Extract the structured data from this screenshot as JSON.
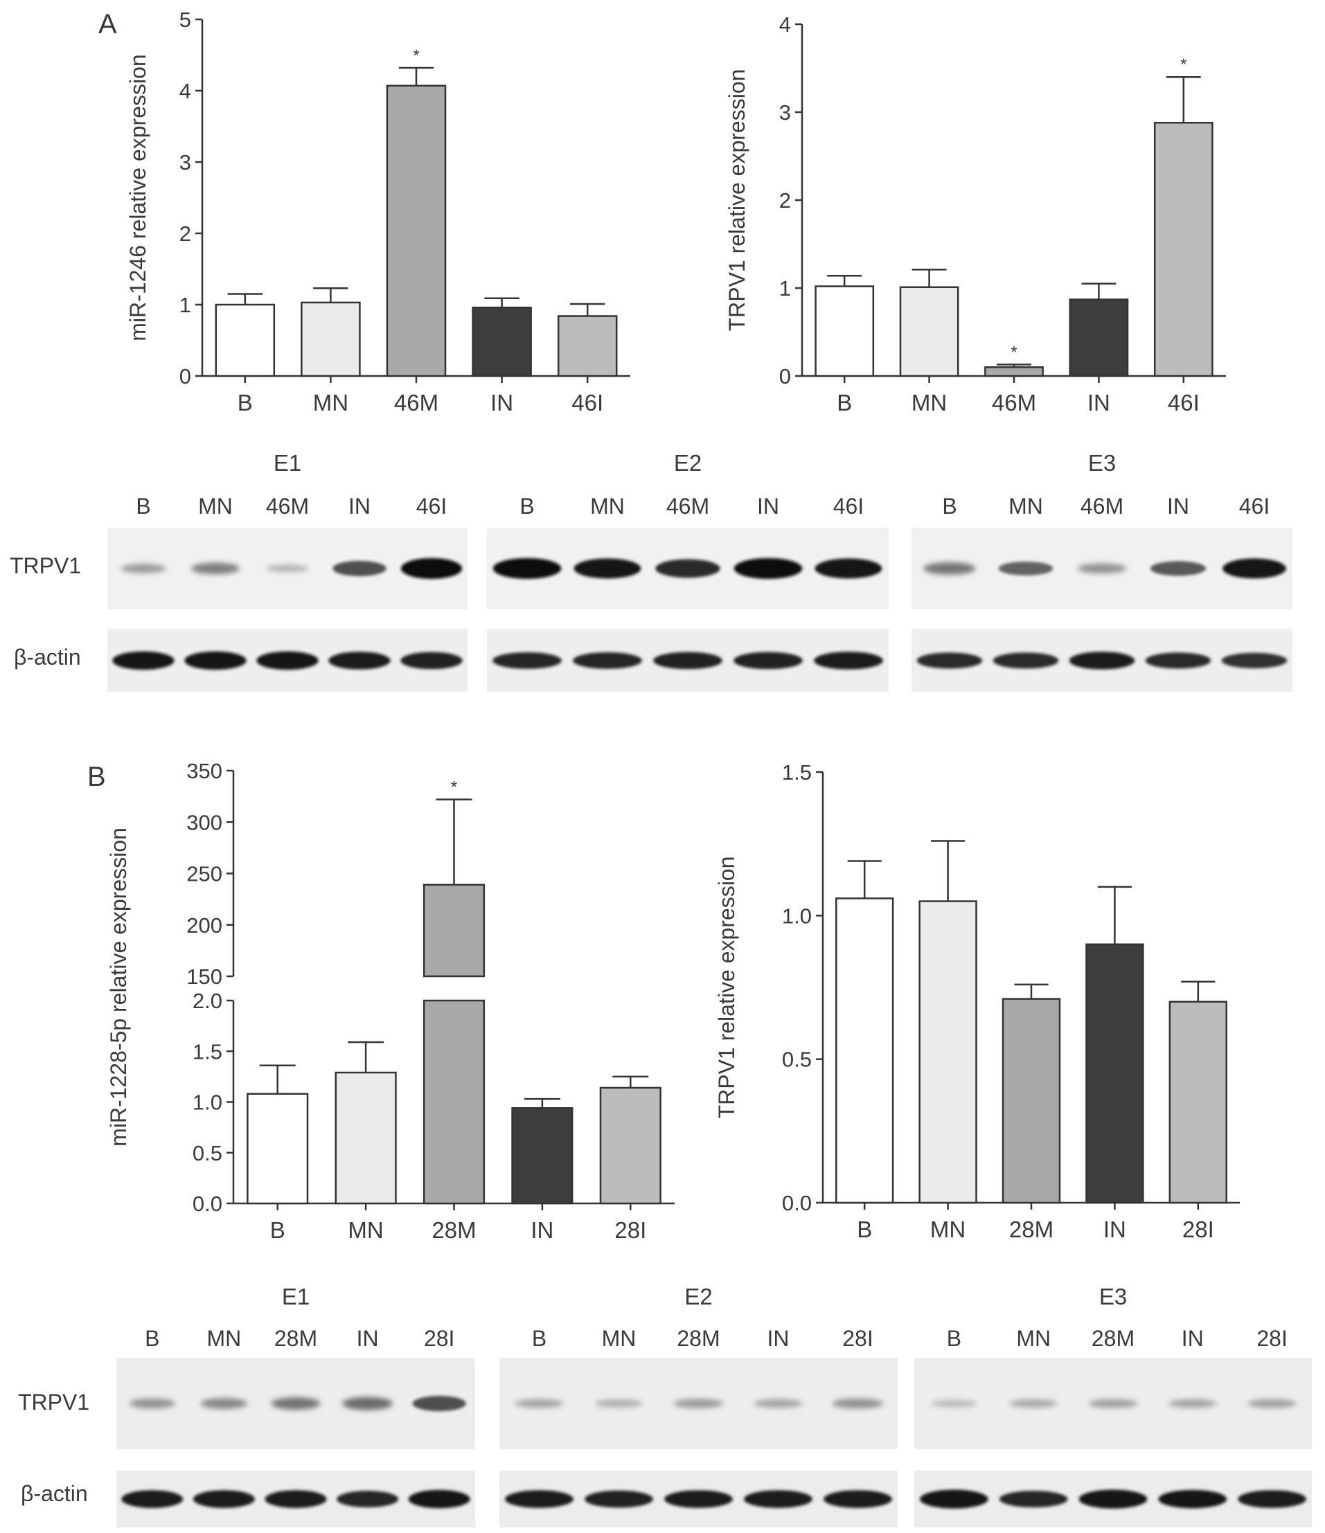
{
  "panels": {
    "A": {
      "letter": "A",
      "charts": [
        {
          "type": "bar",
          "ylabel": "miR-1246 relative expression",
          "ylim": [
            0,
            5
          ],
          "yticks": [
            "0",
            "1",
            "2",
            "3",
            "4",
            "5"
          ],
          "categories": [
            "B",
            "MN",
            "46M",
            "IN",
            "46I"
          ],
          "values": [
            1.0,
            1.03,
            4.07,
            0.96,
            0.84
          ],
          "errors": [
            0.15,
            0.2,
            0.25,
            0.13,
            0.17
          ],
          "significance": [
            "",
            "",
            "*",
            "",
            ""
          ],
          "bar_colors": [
            "#ffffff",
            "#ebebeb",
            "#a9a9a9",
            "#3d3d3d",
            "#bcbcbc"
          ]
        },
        {
          "type": "bar",
          "ylabel": "TRPV1 relative expression",
          "ylim": [
            0,
            4
          ],
          "yticks": [
            "0",
            "1",
            "2",
            "3",
            "4"
          ],
          "categories": [
            "B",
            "MN",
            "46M",
            "IN",
            "46I"
          ],
          "values": [
            1.02,
            1.01,
            0.1,
            0.87,
            2.88
          ],
          "errors": [
            0.12,
            0.2,
            0.03,
            0.18,
            0.52
          ],
          "significance": [
            "",
            "",
            "*",
            "",
            "*"
          ],
          "bar_colors": [
            "#ffffff",
            "#ebebeb",
            "#a9a9a9",
            "#3d3d3d",
            "#bcbcbc"
          ]
        }
      ],
      "blots": [
        {
          "title": "E1",
          "lanes": [
            "B",
            "MN",
            "46M",
            "IN",
            "46I"
          ],
          "trpv1": [
            0.25,
            0.4,
            0.12,
            0.65,
            1.0
          ],
          "actin": [
            0.9,
            0.9,
            0.9,
            0.85,
            0.8
          ]
        },
        {
          "title": "E2",
          "lanes": [
            "B",
            "MN",
            "46M",
            "IN",
            "46I"
          ],
          "trpv1": [
            1.0,
            0.95,
            0.85,
            1.0,
            0.95
          ],
          "actin": [
            0.75,
            0.75,
            0.8,
            0.8,
            0.85
          ]
        },
        {
          "title": "E3",
          "lanes": [
            "B",
            "MN",
            "46M",
            "IN",
            "46I"
          ],
          "trpv1": [
            0.45,
            0.55,
            0.3,
            0.6,
            0.95
          ],
          "actin": [
            0.7,
            0.7,
            0.85,
            0.7,
            0.65
          ]
        }
      ]
    },
    "B": {
      "letter": "B",
      "charts": [
        {
          "type": "bar",
          "ylabel": "miR-1228-5p relative expression",
          "broken_axis": true,
          "lower_range": [
            0,
            2
          ],
          "upper_range": [
            150,
            350
          ],
          "yticks_lower": [
            "0.0",
            "0.5",
            "1.0",
            "1.5",
            "2.0"
          ],
          "yticks_upper": [
            "150",
            "200",
            "250",
            "300",
            "350"
          ],
          "categories": [
            "B",
            "MN",
            "28M",
            "IN",
            "28I"
          ],
          "values": [
            1.08,
            1.29,
            239,
            0.94,
            1.14
          ],
          "errors": [
            0.28,
            0.3,
            83,
            0.09,
            0.11
          ],
          "significance": [
            "",
            "",
            "*",
            "",
            ""
          ],
          "bar_colors": [
            "#ffffff",
            "#ebebeb",
            "#a9a9a9",
            "#3d3d3d",
            "#bcbcbc"
          ]
        },
        {
          "type": "bar",
          "ylabel": "TRPV1 relative expression",
          "ylim": [
            0,
            1.5
          ],
          "yticks": [
            "0.0",
            "0.5",
            "1.0",
            "1.5"
          ],
          "categories": [
            "B",
            "MN",
            "28M",
            "IN",
            "28I"
          ],
          "values": [
            1.06,
            1.05,
            0.71,
            0.9,
            0.7
          ],
          "errors": [
            0.13,
            0.21,
            0.05,
            0.2,
            0.07
          ],
          "significance": [
            "",
            "",
            "",
            "",
            ""
          ],
          "bar_colors": [
            "#ffffff",
            "#ebebeb",
            "#a9a9a9",
            "#3d3d3d",
            "#bcbcbc"
          ]
        }
      ],
      "blots": [
        {
          "title": "E1",
          "lanes": [
            "B",
            "MN",
            "28M",
            "IN",
            "28I"
          ],
          "trpv1": [
            0.3,
            0.35,
            0.45,
            0.5,
            0.65
          ],
          "actin": [
            0.85,
            0.85,
            0.85,
            0.75,
            0.9
          ]
        },
        {
          "title": "E2",
          "lanes": [
            "B",
            "MN",
            "28M",
            "IN",
            "28I"
          ],
          "trpv1": [
            0.2,
            0.15,
            0.25,
            0.2,
            0.3
          ],
          "actin": [
            0.85,
            0.8,
            0.85,
            0.85,
            0.85
          ]
        },
        {
          "title": "E3",
          "lanes": [
            "B",
            "MN",
            "28M",
            "IN",
            "28I"
          ],
          "trpv1": [
            0.1,
            0.18,
            0.22,
            0.2,
            0.22
          ],
          "actin": [
            0.95,
            0.75,
            0.95,
            0.9,
            0.85
          ]
        }
      ]
    }
  },
  "blot_row_labels": {
    "trpv1": "TRPV1",
    "actin": "β-actin"
  }
}
